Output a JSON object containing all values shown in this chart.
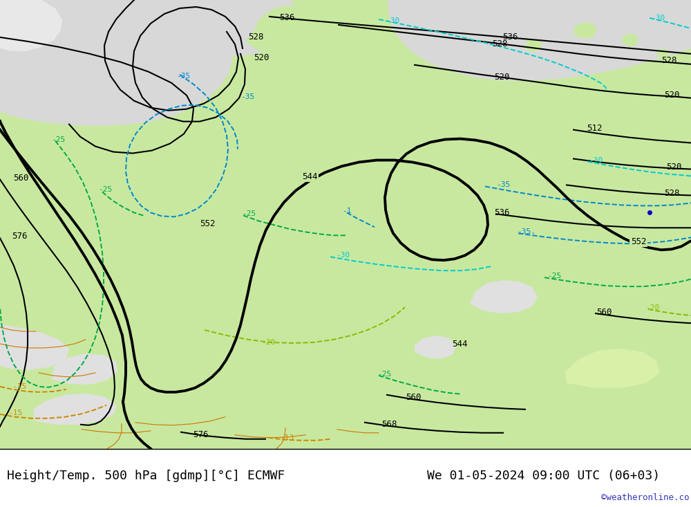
{
  "title_left": "Height/Temp. 500 hPa [gdmp][°C] ECMWF",
  "title_right": "We 01-05-2024 09:00 UTC (06+03)",
  "copyright": "©weatheronline.co.uk",
  "land_green": "#c8e8a0",
  "sea_gray": "#d8d8d8",
  "title_fontsize": 13,
  "copyright_color": "#3333bb"
}
